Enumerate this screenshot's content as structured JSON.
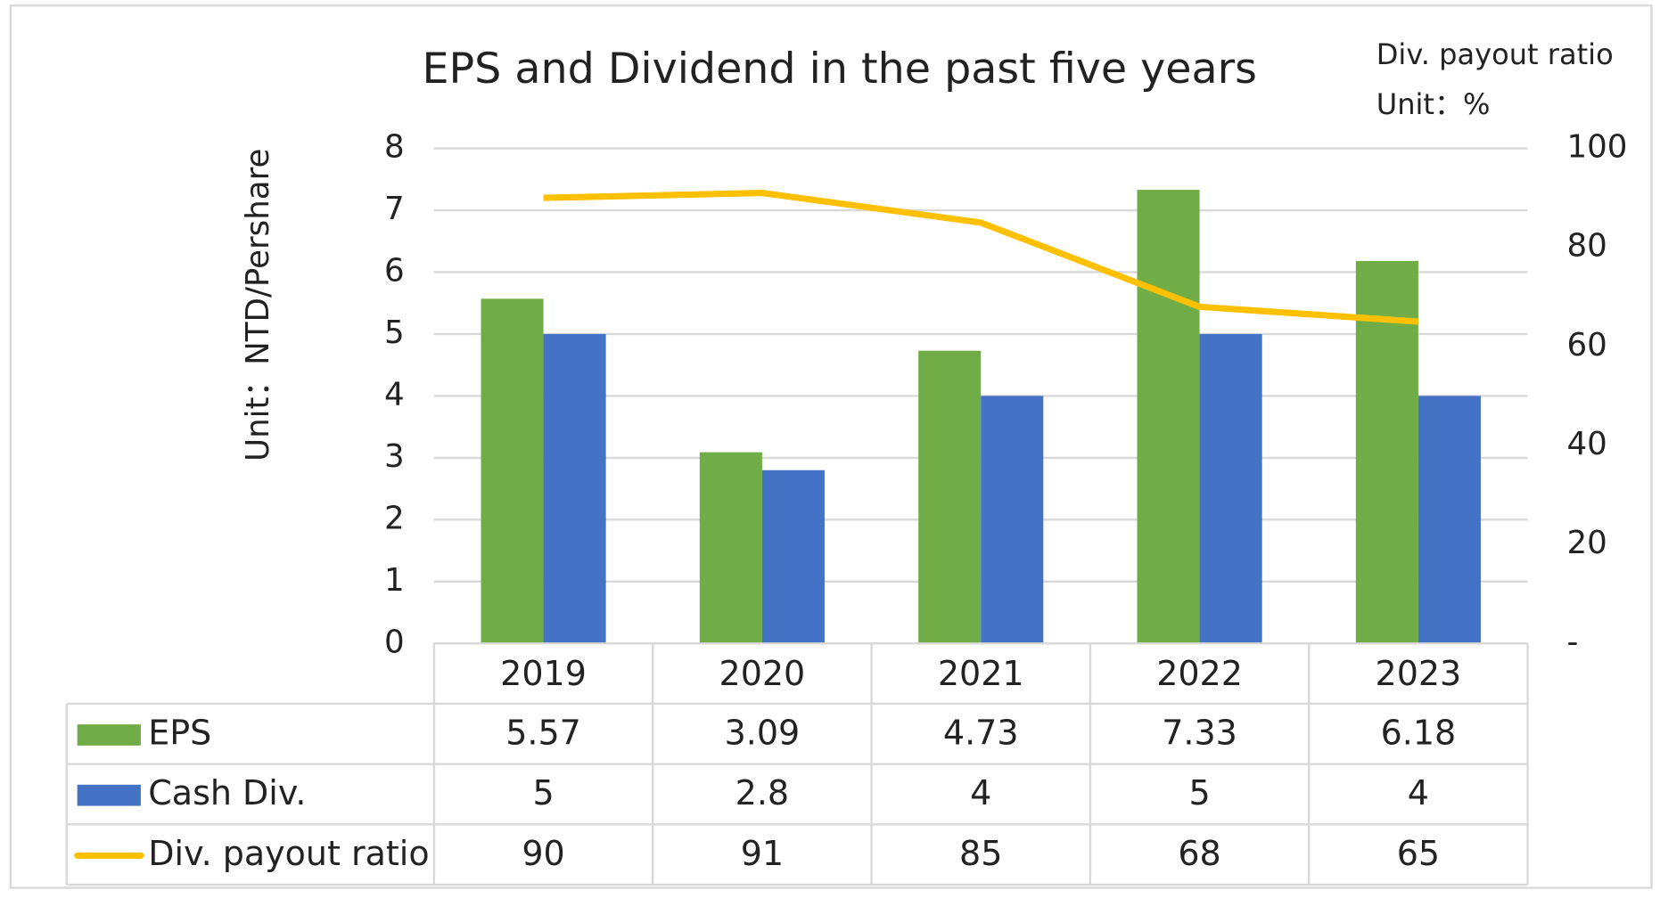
{
  "chart_data": {
    "type": "bar",
    "title": "EPS and Dividend in the past five years",
    "y_label": "Unit：NTD/Pershare",
    "y2_label": "Div. payout ratio",
    "y2_unit": "Unit：%",
    "categories": [
      "2019",
      "2020",
      "2021",
      "2022",
      "2023"
    ],
    "series": [
      {
        "name": "EPS",
        "type": "bar",
        "color": "#70ad47",
        "values": [
          5.57,
          3.09,
          4.73,
          7.33,
          6.18
        ]
      },
      {
        "name": "Cash Div.",
        "type": "bar",
        "color": "#4472c4",
        "values": [
          5,
          2.8,
          4,
          5,
          4
        ]
      },
      {
        "name": "Div. payout ratio",
        "type": "line",
        "axis": "y2",
        "color": "#ffc000",
        "values": [
          90,
          91,
          85,
          68,
          65
        ]
      }
    ],
    "ylim": [
      0,
      8
    ],
    "yticks": [
      0,
      1,
      2,
      3,
      4,
      5,
      6,
      7,
      8
    ],
    "y2lim": [
      0,
      100
    ],
    "y2ticks": [
      {
        "value": 0,
        "label": "-"
      },
      20,
      40,
      60,
      80,
      100
    ],
    "grid": true,
    "legend": "table"
  }
}
